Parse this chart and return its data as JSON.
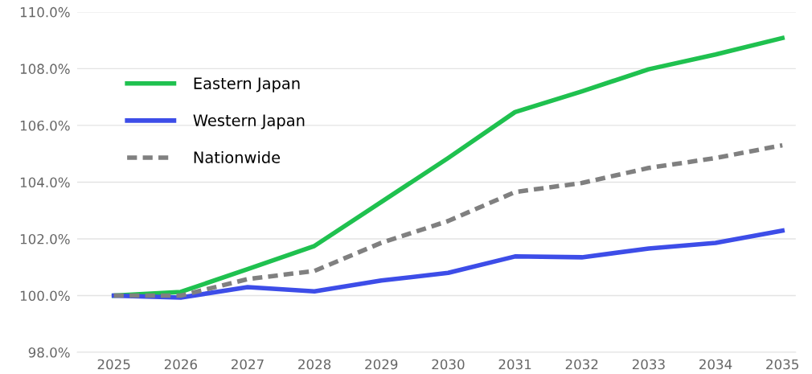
{
  "chart_data": {
    "type": "line",
    "categories": [
      "2025",
      "2026",
      "2027",
      "2028",
      "2029",
      "2030",
      "2031",
      "2032",
      "2033",
      "2034",
      "2035"
    ],
    "series": [
      {
        "name": "Eastern Japan",
        "color": "#1fc14f",
        "values": [
          100.0,
          100.13,
          100.93,
          101.75,
          103.3,
          104.85,
          106.47,
          107.2,
          107.98,
          108.5,
          109.08
        ]
      },
      {
        "name": "Western Japan",
        "color": "#3d4de8",
        "values": [
          100.0,
          99.93,
          100.3,
          100.15,
          100.53,
          100.8,
          101.38,
          101.35,
          101.66,
          101.86,
          102.29
        ]
      },
      {
        "name": "Nationwide",
        "color": "#808080",
        "line_style": "dashed",
        "values": [
          100.0,
          100.0,
          100.58,
          100.87,
          101.86,
          102.63,
          103.65,
          103.97,
          104.5,
          104.85,
          105.3
        ]
      }
    ],
    "ylim": [
      98,
      110
    ],
    "yticks": [
      {
        "value": 98,
        "label": "98.0%"
      },
      {
        "value": 100,
        "label": "100.0%"
      },
      {
        "value": 102,
        "label": "102.0%"
      },
      {
        "value": 104,
        "label": "104.0%"
      },
      {
        "value": 106,
        "label": "106.0%"
      },
      {
        "value": 108,
        "label": "108.0%"
      },
      {
        "value": 110,
        "label": "110.0%"
      }
    ],
    "grid": "y",
    "legend": "top left",
    "marker": "none",
    "line_style": "solid"
  }
}
